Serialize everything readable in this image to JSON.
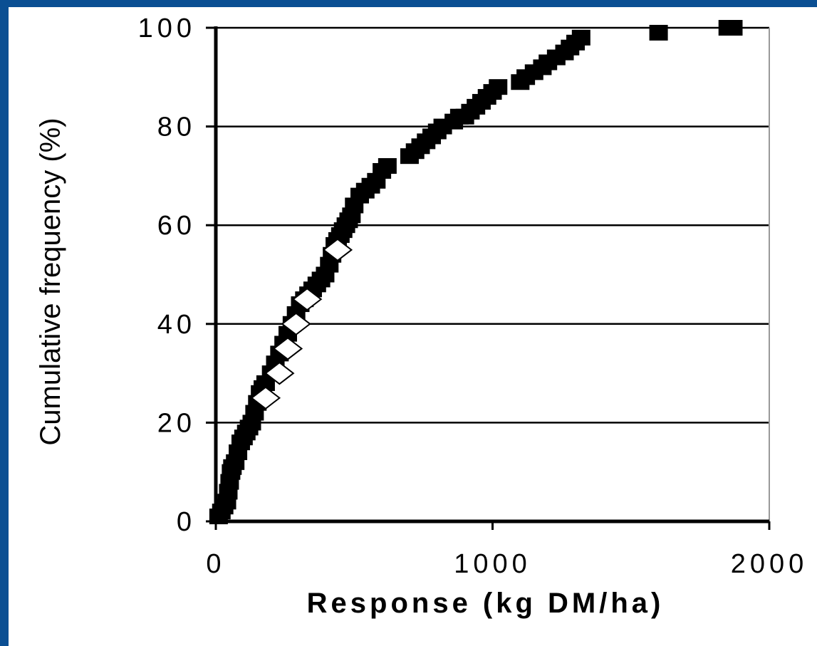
{
  "chart_data": {
    "type": "scatter",
    "xlabel": "Response (kg DM/ha)",
    "ylabel": "Cumulative frequency (%)",
    "xlim": [
      0,
      2000
    ],
    "ylim": [
      0,
      100
    ],
    "xticks": [
      0,
      1000,
      2000
    ],
    "yticks": [
      0,
      20,
      40,
      60,
      80,
      100
    ],
    "xtick_labels": [
      "0",
      "1000",
      "2000"
    ],
    "ytick_labels": [
      "0",
      "20",
      "40",
      "60",
      "80",
      "100"
    ],
    "grid": "horizontal",
    "legend": "none",
    "series": [
      {
        "marker": "square",
        "color": "#000000",
        "x": [
          10,
          20,
          30,
          40,
          45,
          50,
          55,
          60,
          70,
          80,
          90,
          100,
          110,
          120,
          130,
          140,
          150,
          160,
          170,
          180,
          200,
          215,
          230,
          245,
          260,
          275,
          290,
          305,
          320,
          335,
          350,
          365,
          380,
          395,
          410,
          420,
          430,
          440,
          450,
          460,
          470,
          480,
          490,
          500,
          520,
          540,
          560,
          580,
          600,
          620,
          700,
          720,
          740,
          760,
          780,
          800,
          820,
          860,
          880,
          900,
          920,
          940,
          960,
          980,
          1000,
          1020,
          1100,
          1120,
          1150,
          1180,
          1200,
          1230,
          1260,
          1280,
          1300,
          1320,
          1600,
          1850,
          1870
        ],
        "y": [
          1,
          2,
          3,
          4,
          6,
          8,
          10,
          11,
          12,
          14,
          16,
          17,
          18,
          19,
          20,
          22,
          24,
          26,
          27,
          28,
          30,
          32,
          34,
          36,
          38,
          40,
          42,
          44,
          45,
          46,
          47,
          48,
          49,
          50,
          52,
          54,
          56,
          57,
          58,
          59,
          60,
          61,
          62,
          64,
          66,
          67,
          68,
          69,
          71,
          72,
          74,
          75,
          76,
          77,
          78,
          79,
          80,
          81,
          82,
          82,
          83,
          84,
          85,
          86,
          87,
          88,
          89,
          90,
          91,
          92,
          93,
          94,
          95,
          96,
          97,
          98,
          99,
          100,
          100
        ]
      },
      {
        "marker": "diamond-open",
        "color": "#000000",
        "x": [
          180,
          230,
          260,
          290,
          330,
          440
        ],
        "y": [
          25,
          30,
          35,
          40,
          45,
          55
        ]
      }
    ]
  }
}
